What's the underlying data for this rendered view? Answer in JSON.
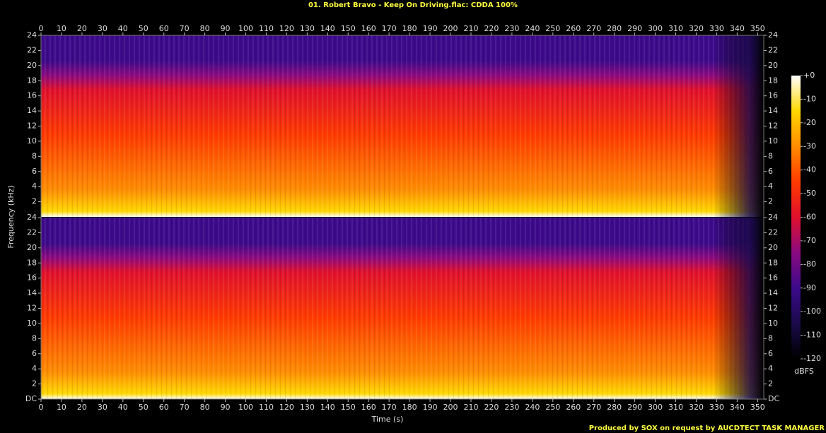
{
  "chart_data": {
    "type": "spectrogram",
    "title": "01. Robert Bravo - Keep On Driving.flac: CDDA 100%",
    "xlabel": "Time (s)",
    "ylabel": "Frequency (kHz)",
    "xlim": [
      0,
      353
    ],
    "xticks": [
      0,
      10,
      20,
      30,
      40,
      50,
      60,
      70,
      80,
      90,
      100,
      110,
      120,
      130,
      140,
      150,
      160,
      170,
      180,
      190,
      200,
      210,
      220,
      230,
      240,
      250,
      260,
      270,
      280,
      290,
      300,
      310,
      320,
      330,
      340,
      350
    ],
    "channels": [
      {
        "ylim": [
          0,
          24
        ],
        "yticks": [
          2,
          4,
          6,
          8,
          10,
          12,
          14,
          16,
          18,
          20,
          22,
          24
        ]
      },
      {
        "ylim": [
          0,
          24
        ],
        "yticks": [
          {
            "value": 0,
            "label": "DC"
          },
          2,
          4,
          6,
          8,
          10,
          12,
          14,
          16,
          18,
          20,
          22,
          24
        ]
      }
    ],
    "colorbar": {
      "label": "dBFS",
      "lim": [
        -120,
        0
      ],
      "ticks": [
        {
          "value": 0,
          "label": "+0"
        },
        -10,
        -20,
        -30,
        -40,
        -50,
        -60,
        -70,
        -80,
        -90,
        -100,
        -110,
        -120
      ],
      "colormap": [
        "#000000",
        "#1a0a4a",
        "#3c0a8a",
        "#8a0a80",
        "#e0102c",
        "#ff3a00",
        "#ff8c00",
        "#ffd800",
        "#ffffff"
      ]
    },
    "footer": "Produced by SOX on request by AUCDTECT TASK MANAGER"
  }
}
